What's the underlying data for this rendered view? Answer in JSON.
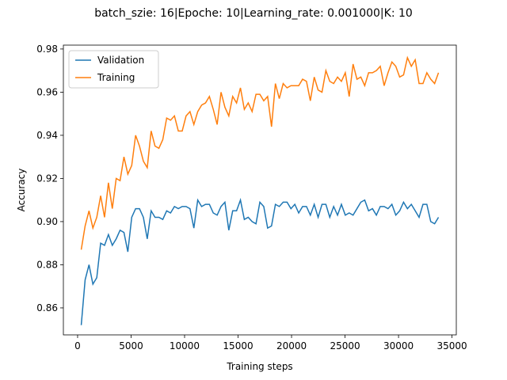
{
  "chart_data": {
    "type": "line",
    "title": "batch_szie: 16|Epoche: 10|Learning_rate: 0.001000|K: 10",
    "xlabel": "Training steps",
    "ylabel": "Accuracy",
    "x": [
      340,
      703,
      1066,
      1429,
      1792,
      2155,
      2518,
      2881,
      3244,
      3607,
      3970,
      4333,
      4696,
      5059,
      5422,
      5785,
      6148,
      6511,
      6874,
      7237,
      7600,
      7963,
      8326,
      8689,
      9052,
      9415,
      9778,
      10141,
      10504,
      10867,
      11230,
      11593,
      11956,
      12319,
      12682,
      13045,
      13408,
      13771,
      14134,
      14497,
      14860,
      15223,
      15586,
      15949,
      16312,
      16675,
      17038,
      17401,
      17764,
      18127,
      18490,
      18853,
      19216,
      19579,
      19942,
      20305,
      20668,
      21031,
      21394,
      21757,
      22120,
      22483,
      22846,
      23209,
      23572,
      23935,
      24298,
      24661,
      25024,
      25387,
      25750,
      26113,
      26476,
      26839,
      27202,
      27565,
      27928,
      28291,
      28654,
      29017,
      29380,
      29743,
      30106,
      30469,
      30832,
      31195,
      31558,
      31921,
      32284,
      32647,
      33010,
      33373,
      33736
    ],
    "series": [
      {
        "name": "Validation",
        "color": "#1f77b4",
        "values": [
          0.852,
          0.873,
          0.88,
          0.871,
          0.874,
          0.89,
          0.889,
          0.894,
          0.889,
          0.892,
          0.896,
          0.895,
          0.886,
          0.902,
          0.906,
          0.906,
          0.902,
          0.892,
          0.905,
          0.902,
          0.902,
          0.901,
          0.905,
          0.904,
          0.907,
          0.906,
          0.907,
          0.907,
          0.906,
          0.897,
          0.91,
          0.907,
          0.908,
          0.908,
          0.904,
          0.903,
          0.907,
          0.909,
          0.896,
          0.905,
          0.905,
          0.91,
          0.901,
          0.902,
          0.9,
          0.899,
          0.909,
          0.907,
          0.897,
          0.898,
          0.908,
          0.907,
          0.909,
          0.909,
          0.906,
          0.908,
          0.904,
          0.907,
          0.907,
          0.903,
          0.908,
          0.902,
          0.908,
          0.908,
          0.902,
          0.907,
          0.903,
          0.908,
          0.903,
          0.904,
          0.903,
          0.906,
          0.909,
          0.91,
          0.905,
          0.906,
          0.903,
          0.907,
          0.907,
          0.906,
          0.908,
          0.903,
          0.905,
          0.909,
          0.906,
          0.908,
          0.905,
          0.902,
          0.908,
          0.908,
          0.9,
          0.899,
          0.902
        ]
      },
      {
        "name": "Training",
        "color": "#ff7f0e",
        "values": [
          0.887,
          0.898,
          0.905,
          0.897,
          0.902,
          0.912,
          0.902,
          0.918,
          0.906,
          0.92,
          0.919,
          0.93,
          0.922,
          0.926,
          0.94,
          0.935,
          0.928,
          0.925,
          0.942,
          0.935,
          0.934,
          0.938,
          0.948,
          0.947,
          0.949,
          0.942,
          0.942,
          0.949,
          0.951,
          0.945,
          0.951,
          0.954,
          0.955,
          0.958,
          0.952,
          0.945,
          0.96,
          0.953,
          0.949,
          0.958,
          0.955,
          0.962,
          0.952,
          0.955,
          0.951,
          0.959,
          0.959,
          0.956,
          0.958,
          0.944,
          0.964,
          0.957,
          0.964,
          0.962,
          0.963,
          0.963,
          0.963,
          0.966,
          0.965,
          0.956,
          0.967,
          0.961,
          0.96,
          0.97,
          0.965,
          0.964,
          0.967,
          0.965,
          0.969,
          0.958,
          0.973,
          0.966,
          0.967,
          0.963,
          0.969,
          0.969,
          0.97,
          0.972,
          0.963,
          0.969,
          0.974,
          0.972,
          0.967,
          0.968,
          0.976,
          0.972,
          0.975,
          0.964,
          0.964,
          0.969,
          0.966,
          0.964,
          0.969
        ]
      }
    ],
    "xlim": [
      -1330,
      35400
    ],
    "ylim": [
      0.8475,
      0.9818
    ],
    "xticks": [
      0,
      5000,
      10000,
      15000,
      20000,
      25000,
      30000,
      35000
    ],
    "yticks": [
      0.86,
      0.88,
      {
        "value": 0.9,
        "label": "0.90"
      },
      0.92,
      0.94,
      0.96,
      0.98
    ],
    "legend": "upper left"
  }
}
